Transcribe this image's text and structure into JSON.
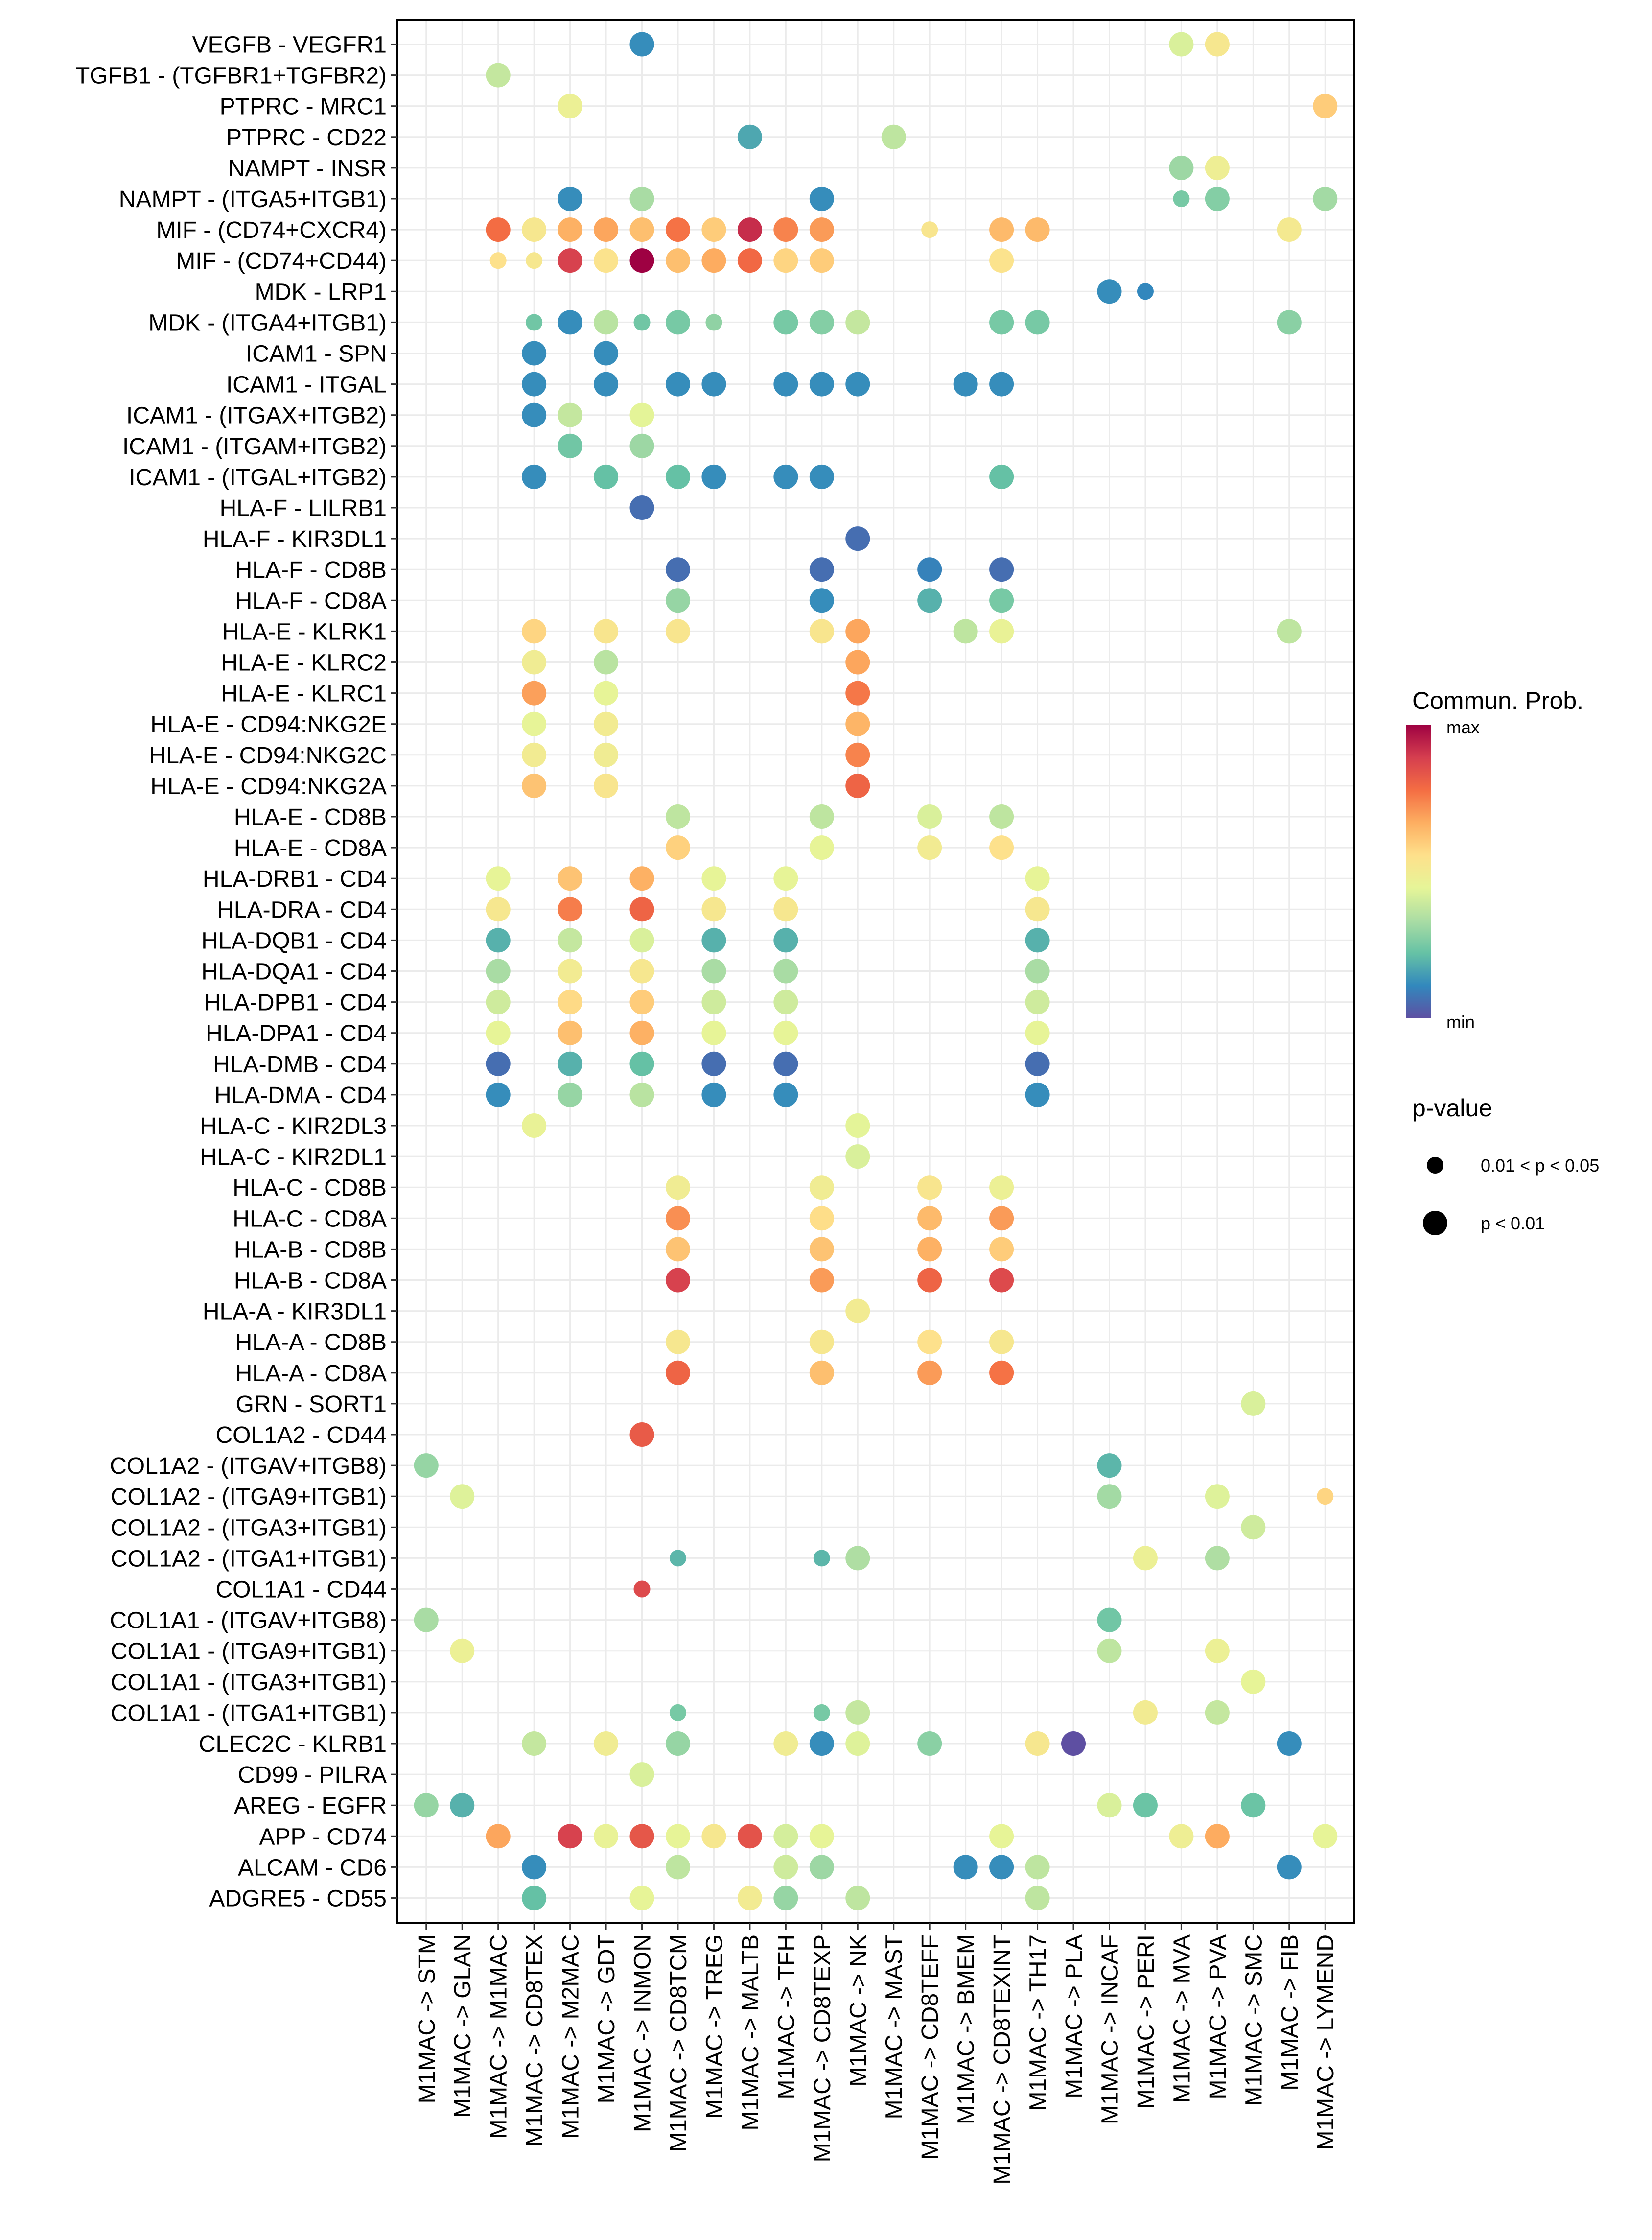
{
  "chart_data": {
    "type": "scatter",
    "subtype": "dot-matrix",
    "title": "",
    "xlabel": "",
    "ylabel": "",
    "grid": true,
    "x": [
      "M1MAC -> STM",
      "M1MAC -> GLAN",
      "M1MAC -> M1MAC",
      "M1MAC -> CD8TEX",
      "M1MAC -> M2MAC",
      "M1MAC -> GDT",
      "M1MAC -> INMON",
      "M1MAC -> CD8TCM",
      "M1MAC -> TREG",
      "M1MAC -> MALTB",
      "M1MAC -> TFH",
      "M1MAC -> CD8TEXP",
      "M1MAC -> NK",
      "M1MAC -> MAST",
      "M1MAC -> CD8TEFF",
      "M1MAC -> BMEM",
      "M1MAC -> CD8TEXINT",
      "M1MAC -> TH17",
      "M1MAC -> PLA",
      "M1MAC -> INCAF",
      "M1MAC -> PERI",
      "M1MAC -> MVA",
      "M1MAC -> PVA",
      "M1MAC -> SMC",
      "M1MAC -> FIB",
      "M1MAC -> LYMEND"
    ],
    "y": [
      "VEGFB - VEGFR1",
      "TGFB1 - (TGFBR1+TGFBR2)",
      "PTPRC - MRC1",
      "PTPRC - CD22",
      "NAMPT - INSR",
      "NAMPT - (ITGA5+ITGB1)",
      "MIF - (CD74+CXCR4)",
      "MIF - (CD74+CD44)",
      "MDK - LRP1",
      "MDK - (ITGA4+ITGB1)",
      "ICAM1 - SPN",
      "ICAM1 - ITGAL",
      "ICAM1 - (ITGAX+ITGB2)",
      "ICAM1 - (ITGAM+ITGB2)",
      "ICAM1 - (ITGAL+ITGB2)",
      "HLA-F - LILRB1",
      "HLA-F - KIR3DL1",
      "HLA-F - CD8B",
      "HLA-F - CD8A",
      "HLA-E - KLRK1",
      "HLA-E - KLRC2",
      "HLA-E - KLRC1",
      "HLA-E - CD94:NKG2E",
      "HLA-E - CD94:NKG2C",
      "HLA-E - CD94:NKG2A",
      "HLA-E - CD8B",
      "HLA-E - CD8A",
      "HLA-DRB1 - CD4",
      "HLA-DRA - CD4",
      "HLA-DQB1 - CD4",
      "HLA-DQA1 - CD4",
      "HLA-DPB1 - CD4",
      "HLA-DPA1 - CD4",
      "HLA-DMB - CD4",
      "HLA-DMA - CD4",
      "HLA-C - KIR2DL3",
      "HLA-C - KIR2DL1",
      "HLA-C - CD8B",
      "HLA-C - CD8A",
      "HLA-B - CD8B",
      "HLA-B - CD8A",
      "HLA-A - KIR3DL1",
      "HLA-A - CD8B",
      "HLA-A - CD8A",
      "GRN - SORT1",
      "COL1A2 - CD44",
      "COL1A2 - (ITGAV+ITGB8)",
      "COL1A2 - (ITGA9+ITGB1)",
      "COL1A2 - (ITGA3+ITGB1)",
      "COL1A2 - (ITGA1+ITGB1)",
      "COL1A1 - CD44",
      "COL1A1 - (ITGAV+ITGB8)",
      "COL1A1 - (ITGA9+ITGB1)",
      "COL1A1 - (ITGA3+ITGB1)",
      "COL1A1 - (ITGA1+ITGB1)",
      "CLEC2C - KLRB1",
      "CD99 - PILRA",
      "AREG - EGFR",
      "APP - CD74",
      "ALCAM - CD6",
      "ADGRE5 - CD55"
    ],
    "point_fields": [
      "y_index",
      "x_index",
      "commun_prob_scaled",
      "pvalue_class"
    ],
    "points": [
      [
        0,
        6,
        0.12,
        1
      ],
      [
        0,
        21,
        0.42,
        1
      ],
      [
        0,
        22,
        0.52,
        1
      ],
      [
        1,
        2,
        0.38,
        1
      ],
      [
        2,
        4,
        0.47,
        1
      ],
      [
        2,
        25,
        0.6,
        1
      ],
      [
        3,
        9,
        0.17,
        1
      ],
      [
        3,
        13,
        0.37,
        1
      ],
      [
        4,
        21,
        0.31,
        1
      ],
      [
        4,
        22,
        0.48,
        1
      ],
      [
        5,
        4,
        0.12,
        1
      ],
      [
        5,
        6,
        0.33,
        1
      ],
      [
        5,
        11,
        0.12,
        1
      ],
      [
        5,
        21,
        0.25,
        0
      ],
      [
        5,
        22,
        0.27,
        1
      ],
      [
        5,
        25,
        0.32,
        1
      ],
      [
        6,
        2,
        0.78,
        1
      ],
      [
        6,
        3,
        0.52,
        1
      ],
      [
        6,
        4,
        0.66,
        1
      ],
      [
        6,
        5,
        0.68,
        1
      ],
      [
        6,
        6,
        0.63,
        1
      ],
      [
        6,
        7,
        0.77,
        1
      ],
      [
        6,
        8,
        0.6,
        1
      ],
      [
        6,
        9,
        0.92,
        1
      ],
      [
        6,
        10,
        0.74,
        1
      ],
      [
        6,
        11,
        0.7,
        1
      ],
      [
        6,
        14,
        0.53,
        0
      ],
      [
        6,
        16,
        0.64,
        1
      ],
      [
        6,
        17,
        0.64,
        1
      ],
      [
        6,
        24,
        0.51,
        1
      ],
      [
        7,
        2,
        0.55,
        0
      ],
      [
        7,
        3,
        0.52,
        0
      ],
      [
        7,
        4,
        0.88,
        1
      ],
      [
        7,
        5,
        0.54,
        1
      ],
      [
        7,
        6,
        1.0,
        1
      ],
      [
        7,
        7,
        0.63,
        1
      ],
      [
        7,
        8,
        0.67,
        1
      ],
      [
        7,
        9,
        0.79,
        1
      ],
      [
        7,
        10,
        0.58,
        1
      ],
      [
        7,
        11,
        0.6,
        1
      ],
      [
        7,
        16,
        0.54,
        1
      ],
      [
        8,
        19,
        0.12,
        1
      ],
      [
        8,
        20,
        0.11,
        0
      ],
      [
        9,
        3,
        0.24,
        0
      ],
      [
        9,
        4,
        0.12,
        1
      ],
      [
        9,
        5,
        0.36,
        1
      ],
      [
        9,
        6,
        0.24,
        0
      ],
      [
        9,
        7,
        0.25,
        1
      ],
      [
        9,
        8,
        0.29,
        0
      ],
      [
        9,
        10,
        0.25,
        1
      ],
      [
        9,
        11,
        0.27,
        1
      ],
      [
        9,
        12,
        0.38,
        1
      ],
      [
        9,
        16,
        0.25,
        1
      ],
      [
        9,
        17,
        0.25,
        1
      ],
      [
        9,
        24,
        0.28,
        1
      ],
      [
        10,
        3,
        0.12,
        1
      ],
      [
        10,
        5,
        0.12,
        1
      ],
      [
        11,
        3,
        0.12,
        1
      ],
      [
        11,
        5,
        0.12,
        1
      ],
      [
        11,
        7,
        0.12,
        1
      ],
      [
        11,
        8,
        0.12,
        1
      ],
      [
        11,
        10,
        0.12,
        1
      ],
      [
        11,
        11,
        0.12,
        1
      ],
      [
        11,
        12,
        0.12,
        1
      ],
      [
        11,
        15,
        0.12,
        1
      ],
      [
        11,
        16,
        0.12,
        1
      ],
      [
        12,
        3,
        0.12,
        1
      ],
      [
        12,
        4,
        0.38,
        1
      ],
      [
        12,
        6,
        0.44,
        1
      ],
      [
        13,
        4,
        0.24,
        1
      ],
      [
        13,
        6,
        0.31,
        1
      ],
      [
        14,
        3,
        0.12,
        1
      ],
      [
        14,
        5,
        0.22,
        1
      ],
      [
        14,
        7,
        0.22,
        1
      ],
      [
        14,
        8,
        0.12,
        1
      ],
      [
        14,
        10,
        0.12,
        1
      ],
      [
        14,
        11,
        0.12,
        1
      ],
      [
        14,
        16,
        0.22,
        1
      ],
      [
        15,
        6,
        0.06,
        1
      ],
      [
        16,
        12,
        0.06,
        1
      ],
      [
        17,
        7,
        0.06,
        1
      ],
      [
        17,
        11,
        0.06,
        1
      ],
      [
        17,
        14,
        0.1,
        1
      ],
      [
        17,
        16,
        0.06,
        1
      ],
      [
        18,
        7,
        0.3,
        1
      ],
      [
        18,
        11,
        0.12,
        1
      ],
      [
        18,
        14,
        0.19,
        1
      ],
      [
        18,
        16,
        0.25,
        1
      ],
      [
        19,
        3,
        0.58,
        1
      ],
      [
        19,
        5,
        0.53,
        1
      ],
      [
        19,
        7,
        0.53,
        1
      ],
      [
        19,
        11,
        0.53,
        1
      ],
      [
        19,
        12,
        0.68,
        1
      ],
      [
        19,
        15,
        0.37,
        1
      ],
      [
        19,
        16,
        0.46,
        1
      ],
      [
        19,
        24,
        0.37,
        1
      ],
      [
        20,
        3,
        0.49,
        1
      ],
      [
        20,
        5,
        0.36,
        1
      ],
      [
        20,
        12,
        0.68,
        1
      ],
      [
        21,
        3,
        0.69,
        1
      ],
      [
        21,
        5,
        0.45,
        1
      ],
      [
        21,
        12,
        0.76,
        1
      ],
      [
        22,
        3,
        0.45,
        1
      ],
      [
        22,
        5,
        0.5,
        1
      ],
      [
        22,
        12,
        0.65,
        1
      ],
      [
        23,
        3,
        0.5,
        1
      ],
      [
        23,
        5,
        0.49,
        1
      ],
      [
        23,
        12,
        0.74,
        1
      ],
      [
        24,
        3,
        0.62,
        1
      ],
      [
        24,
        5,
        0.53,
        1
      ],
      [
        24,
        12,
        0.8,
        1
      ],
      [
        25,
        7,
        0.37,
        1
      ],
      [
        25,
        11,
        0.37,
        1
      ],
      [
        25,
        14,
        0.42,
        1
      ],
      [
        25,
        16,
        0.37,
        1
      ],
      [
        26,
        7,
        0.59,
        1
      ],
      [
        26,
        11,
        0.45,
        1
      ],
      [
        26,
        14,
        0.5,
        1
      ],
      [
        26,
        16,
        0.55,
        1
      ],
      [
        27,
        2,
        0.45,
        1
      ],
      [
        27,
        4,
        0.62,
        1
      ],
      [
        27,
        6,
        0.66,
        1
      ],
      [
        27,
        8,
        0.45,
        1
      ],
      [
        27,
        10,
        0.45,
        1
      ],
      [
        27,
        17,
        0.45,
        1
      ],
      [
        28,
        2,
        0.52,
        1
      ],
      [
        28,
        4,
        0.75,
        1
      ],
      [
        28,
        6,
        0.8,
        1
      ],
      [
        28,
        8,
        0.52,
        1
      ],
      [
        28,
        10,
        0.52,
        1
      ],
      [
        28,
        17,
        0.52,
        1
      ],
      [
        29,
        2,
        0.19,
        1
      ],
      [
        29,
        4,
        0.38,
        1
      ],
      [
        29,
        6,
        0.42,
        1
      ],
      [
        29,
        8,
        0.19,
        1
      ],
      [
        29,
        10,
        0.19,
        1
      ],
      [
        29,
        17,
        0.19,
        1
      ],
      [
        30,
        2,
        0.33,
        1
      ],
      [
        30,
        4,
        0.5,
        1
      ],
      [
        30,
        6,
        0.52,
        1
      ],
      [
        30,
        8,
        0.33,
        1
      ],
      [
        30,
        10,
        0.33,
        1
      ],
      [
        30,
        17,
        0.33,
        1
      ],
      [
        31,
        2,
        0.4,
        1
      ],
      [
        31,
        4,
        0.57,
        1
      ],
      [
        31,
        6,
        0.6,
        1
      ],
      [
        31,
        8,
        0.4,
        1
      ],
      [
        31,
        10,
        0.4,
        1
      ],
      [
        31,
        17,
        0.4,
        1
      ],
      [
        32,
        2,
        0.45,
        1
      ],
      [
        32,
        4,
        0.63,
        1
      ],
      [
        32,
        6,
        0.66,
        1
      ],
      [
        32,
        8,
        0.45,
        1
      ],
      [
        32,
        10,
        0.45,
        1
      ],
      [
        32,
        17,
        0.45,
        1
      ],
      [
        33,
        2,
        0.06,
        1
      ],
      [
        33,
        4,
        0.19,
        1
      ],
      [
        33,
        6,
        0.22,
        1
      ],
      [
        33,
        8,
        0.06,
        1
      ],
      [
        33,
        10,
        0.06,
        1
      ],
      [
        33,
        17,
        0.06,
        1
      ],
      [
        34,
        2,
        0.12,
        1
      ],
      [
        34,
        4,
        0.3,
        1
      ],
      [
        34,
        6,
        0.36,
        1
      ],
      [
        34,
        8,
        0.12,
        1
      ],
      [
        34,
        10,
        0.12,
        1
      ],
      [
        34,
        17,
        0.12,
        1
      ],
      [
        35,
        3,
        0.46,
        1
      ],
      [
        35,
        12,
        0.44,
        1
      ],
      [
        36,
        12,
        0.42,
        1
      ],
      [
        37,
        7,
        0.49,
        1
      ],
      [
        37,
        11,
        0.49,
        1
      ],
      [
        37,
        14,
        0.53,
        1
      ],
      [
        37,
        16,
        0.47,
        1
      ],
      [
        38,
        7,
        0.72,
        1
      ],
      [
        38,
        11,
        0.56,
        1
      ],
      [
        38,
        14,
        0.64,
        1
      ],
      [
        38,
        16,
        0.7,
        1
      ],
      [
        39,
        7,
        0.62,
        1
      ],
      [
        39,
        11,
        0.62,
        1
      ],
      [
        39,
        14,
        0.66,
        1
      ],
      [
        39,
        16,
        0.6,
        1
      ],
      [
        40,
        7,
        0.88,
        1
      ],
      [
        40,
        11,
        0.7,
        1
      ],
      [
        40,
        14,
        0.8,
        1
      ],
      [
        40,
        16,
        0.86,
        1
      ],
      [
        41,
        12,
        0.5,
        1
      ],
      [
        42,
        7,
        0.52,
        1
      ],
      [
        42,
        11,
        0.52,
        1
      ],
      [
        42,
        14,
        0.55,
        1
      ],
      [
        42,
        16,
        0.52,
        1
      ],
      [
        43,
        7,
        0.8,
        1
      ],
      [
        43,
        11,
        0.63,
        1
      ],
      [
        43,
        14,
        0.7,
        1
      ],
      [
        43,
        16,
        0.77,
        1
      ],
      [
        44,
        23,
        0.42,
        1
      ],
      [
        45,
        6,
        0.82,
        1
      ],
      [
        46,
        0,
        0.3,
        1
      ],
      [
        46,
        19,
        0.2,
        1
      ],
      [
        47,
        1,
        0.43,
        1
      ],
      [
        47,
        19,
        0.32,
        1
      ],
      [
        47,
        22,
        0.43,
        1
      ],
      [
        47,
        25,
        0.58,
        0
      ],
      [
        48,
        23,
        0.4,
        1
      ],
      [
        49,
        7,
        0.2,
        0
      ],
      [
        49,
        11,
        0.2,
        0
      ],
      [
        49,
        12,
        0.34,
        1
      ],
      [
        49,
        20,
        0.47,
        1
      ],
      [
        49,
        22,
        0.34,
        1
      ],
      [
        50,
        6,
        0.86,
        0
      ],
      [
        51,
        0,
        0.33,
        1
      ],
      [
        51,
        19,
        0.24,
        1
      ],
      [
        52,
        1,
        0.47,
        1
      ],
      [
        52,
        19,
        0.37,
        1
      ],
      [
        52,
        22,
        0.47,
        1
      ],
      [
        53,
        23,
        0.45,
        1
      ],
      [
        54,
        7,
        0.25,
        0
      ],
      [
        54,
        11,
        0.25,
        0
      ],
      [
        54,
        12,
        0.38,
        1
      ],
      [
        54,
        20,
        0.5,
        1
      ],
      [
        54,
        22,
        0.38,
        1
      ],
      [
        55,
        3,
        0.38,
        1
      ],
      [
        55,
        5,
        0.49,
        1
      ],
      [
        55,
        7,
        0.3,
        1
      ],
      [
        55,
        10,
        0.49,
        1
      ],
      [
        55,
        11,
        0.12,
        1
      ],
      [
        55,
        12,
        0.43,
        1
      ],
      [
        55,
        14,
        0.28,
        1
      ],
      [
        55,
        17,
        0.52,
        1
      ],
      [
        55,
        18,
        0.0,
        1
      ],
      [
        55,
        24,
        0.12,
        1
      ],
      [
        56,
        6,
        0.42,
        1
      ],
      [
        57,
        0,
        0.3,
        1
      ],
      [
        57,
        1,
        0.19,
        1
      ],
      [
        57,
        19,
        0.42,
        1
      ],
      [
        57,
        20,
        0.23,
        1
      ],
      [
        57,
        23,
        0.23,
        1
      ],
      [
        58,
        2,
        0.68,
        1
      ],
      [
        58,
        4,
        0.88,
        1
      ],
      [
        58,
        5,
        0.46,
        1
      ],
      [
        58,
        6,
        0.83,
        1
      ],
      [
        58,
        7,
        0.45,
        1
      ],
      [
        58,
        8,
        0.52,
        1
      ],
      [
        58,
        9,
        0.84,
        1
      ],
      [
        58,
        10,
        0.41,
        1
      ],
      [
        58,
        11,
        0.45,
        1
      ],
      [
        58,
        16,
        0.45,
        1
      ],
      [
        58,
        21,
        0.48,
        1
      ],
      [
        58,
        22,
        0.67,
        1
      ],
      [
        58,
        25,
        0.45,
        1
      ],
      [
        59,
        3,
        0.12,
        1
      ],
      [
        59,
        7,
        0.37,
        1
      ],
      [
        59,
        10,
        0.4,
        1
      ],
      [
        59,
        11,
        0.31,
        1
      ],
      [
        59,
        15,
        0.12,
        1
      ],
      [
        59,
        16,
        0.12,
        1
      ],
      [
        59,
        17,
        0.37,
        1
      ],
      [
        59,
        24,
        0.12,
        1
      ],
      [
        60,
        3,
        0.22,
        1
      ],
      [
        60,
        6,
        0.45,
        1
      ],
      [
        60,
        9,
        0.5,
        1
      ],
      [
        60,
        10,
        0.3,
        1
      ],
      [
        60,
        12,
        0.37,
        1
      ],
      [
        60,
        17,
        0.37,
        1
      ]
    ],
    "color_scale": {
      "title": "Commun. Prob.",
      "low_label": "min",
      "high_label": "max",
      "stops": [
        "#5E4FA2",
        "#3288BD",
        "#66C2A5",
        "#ABDDA4",
        "#E6F598",
        "#FEE08B",
        "#FDAE61",
        "#F46D43",
        "#D53E4F",
        "#9E0142"
      ]
    },
    "size_legend": {
      "title": "p-value",
      "entries": [
        {
          "label": "0.01 < p < 0.05",
          "class": 0
        },
        {
          "label": "p < 0.01",
          "class": 1
        }
      ]
    },
    "legend_position": "right"
  }
}
